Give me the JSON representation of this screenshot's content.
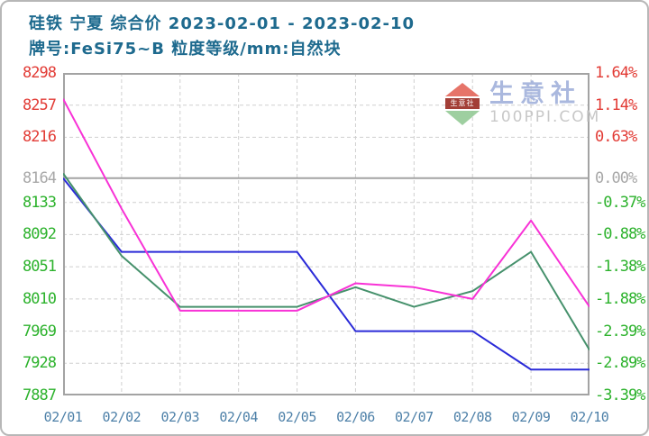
{
  "header": {
    "title": "硅铁 宁夏 综合价 2023-02-01 - 2023-02-10",
    "subtitle": "牌号:FeSi75~B 粒度等级/mm:自然块"
  },
  "watermark": {
    "brand": "生意社",
    "site": "100PPI.COM",
    "logo_text": "生意社"
  },
  "chart_data": {
    "type": "line",
    "title": "硅铁 宁夏 综合价 2023-02-01 - 2023-02-10",
    "subtitle": "牌号:FeSi75~B 粒度等级/mm:自然块",
    "categories": [
      "02/01",
      "02/02",
      "02/03",
      "02/04",
      "02/05",
      "02/06",
      "02/07",
      "02/08",
      "02/09",
      "02/10"
    ],
    "series": [
      {
        "name": "blue",
        "color": "#2a2ad8",
        "values": [
          8164,
          8070,
          8070,
          8070,
          8070,
          7969,
          7969,
          7969,
          7920,
          7920
        ]
      },
      {
        "name": "green",
        "color": "#46916c",
        "values": [
          8170,
          8065,
          8000,
          8000,
          8000,
          8025,
          8000,
          8020,
          8070,
          7945
        ]
      },
      {
        "name": "magenta",
        "color": "#f832d6",
        "values": [
          8265,
          8125,
          7995,
          7995,
          7995,
          8030,
          8025,
          8010,
          8110,
          8000
        ]
      }
    ],
    "base_value": 8164,
    "ylim": [
      7887,
      8298
    ],
    "grid": true,
    "legend": false,
    "y_ticks": [
      {
        "price": "8298",
        "pct": "1.64%",
        "value": 8298,
        "tone": "up"
      },
      {
        "price": "8257",
        "pct": "1.14%",
        "value": 8257,
        "tone": "up"
      },
      {
        "price": "8216",
        "pct": "0.63%",
        "value": 8216,
        "tone": "up"
      },
      {
        "price": "8164",
        "pct": "0.00%",
        "value": 8164,
        "tone": "base"
      },
      {
        "price": "8133",
        "pct": "-0.37%",
        "value": 8133,
        "tone": "down"
      },
      {
        "price": "8092",
        "pct": "-0.88%",
        "value": 8092,
        "tone": "down"
      },
      {
        "price": "8051",
        "pct": "-1.38%",
        "value": 8051,
        "tone": "down"
      },
      {
        "price": "8010",
        "pct": "-1.88%",
        "value": 8010,
        "tone": "down"
      },
      {
        "price": "7969",
        "pct": "-2.39%",
        "value": 7969,
        "tone": "down"
      },
      {
        "price": "7928",
        "pct": "-2.89%",
        "value": 7928,
        "tone": "down"
      },
      {
        "price": "7887",
        "pct": "-3.39%",
        "value": 7887,
        "tone": "down"
      }
    ],
    "colors": {
      "up": "#e23b35",
      "down": "#2cb22c",
      "base": "#a8a8a8",
      "grid": "#cfcfcf",
      "axis": "#a3a3a3",
      "title": "#1e6a8e",
      "date": "#4d80a8"
    }
  }
}
